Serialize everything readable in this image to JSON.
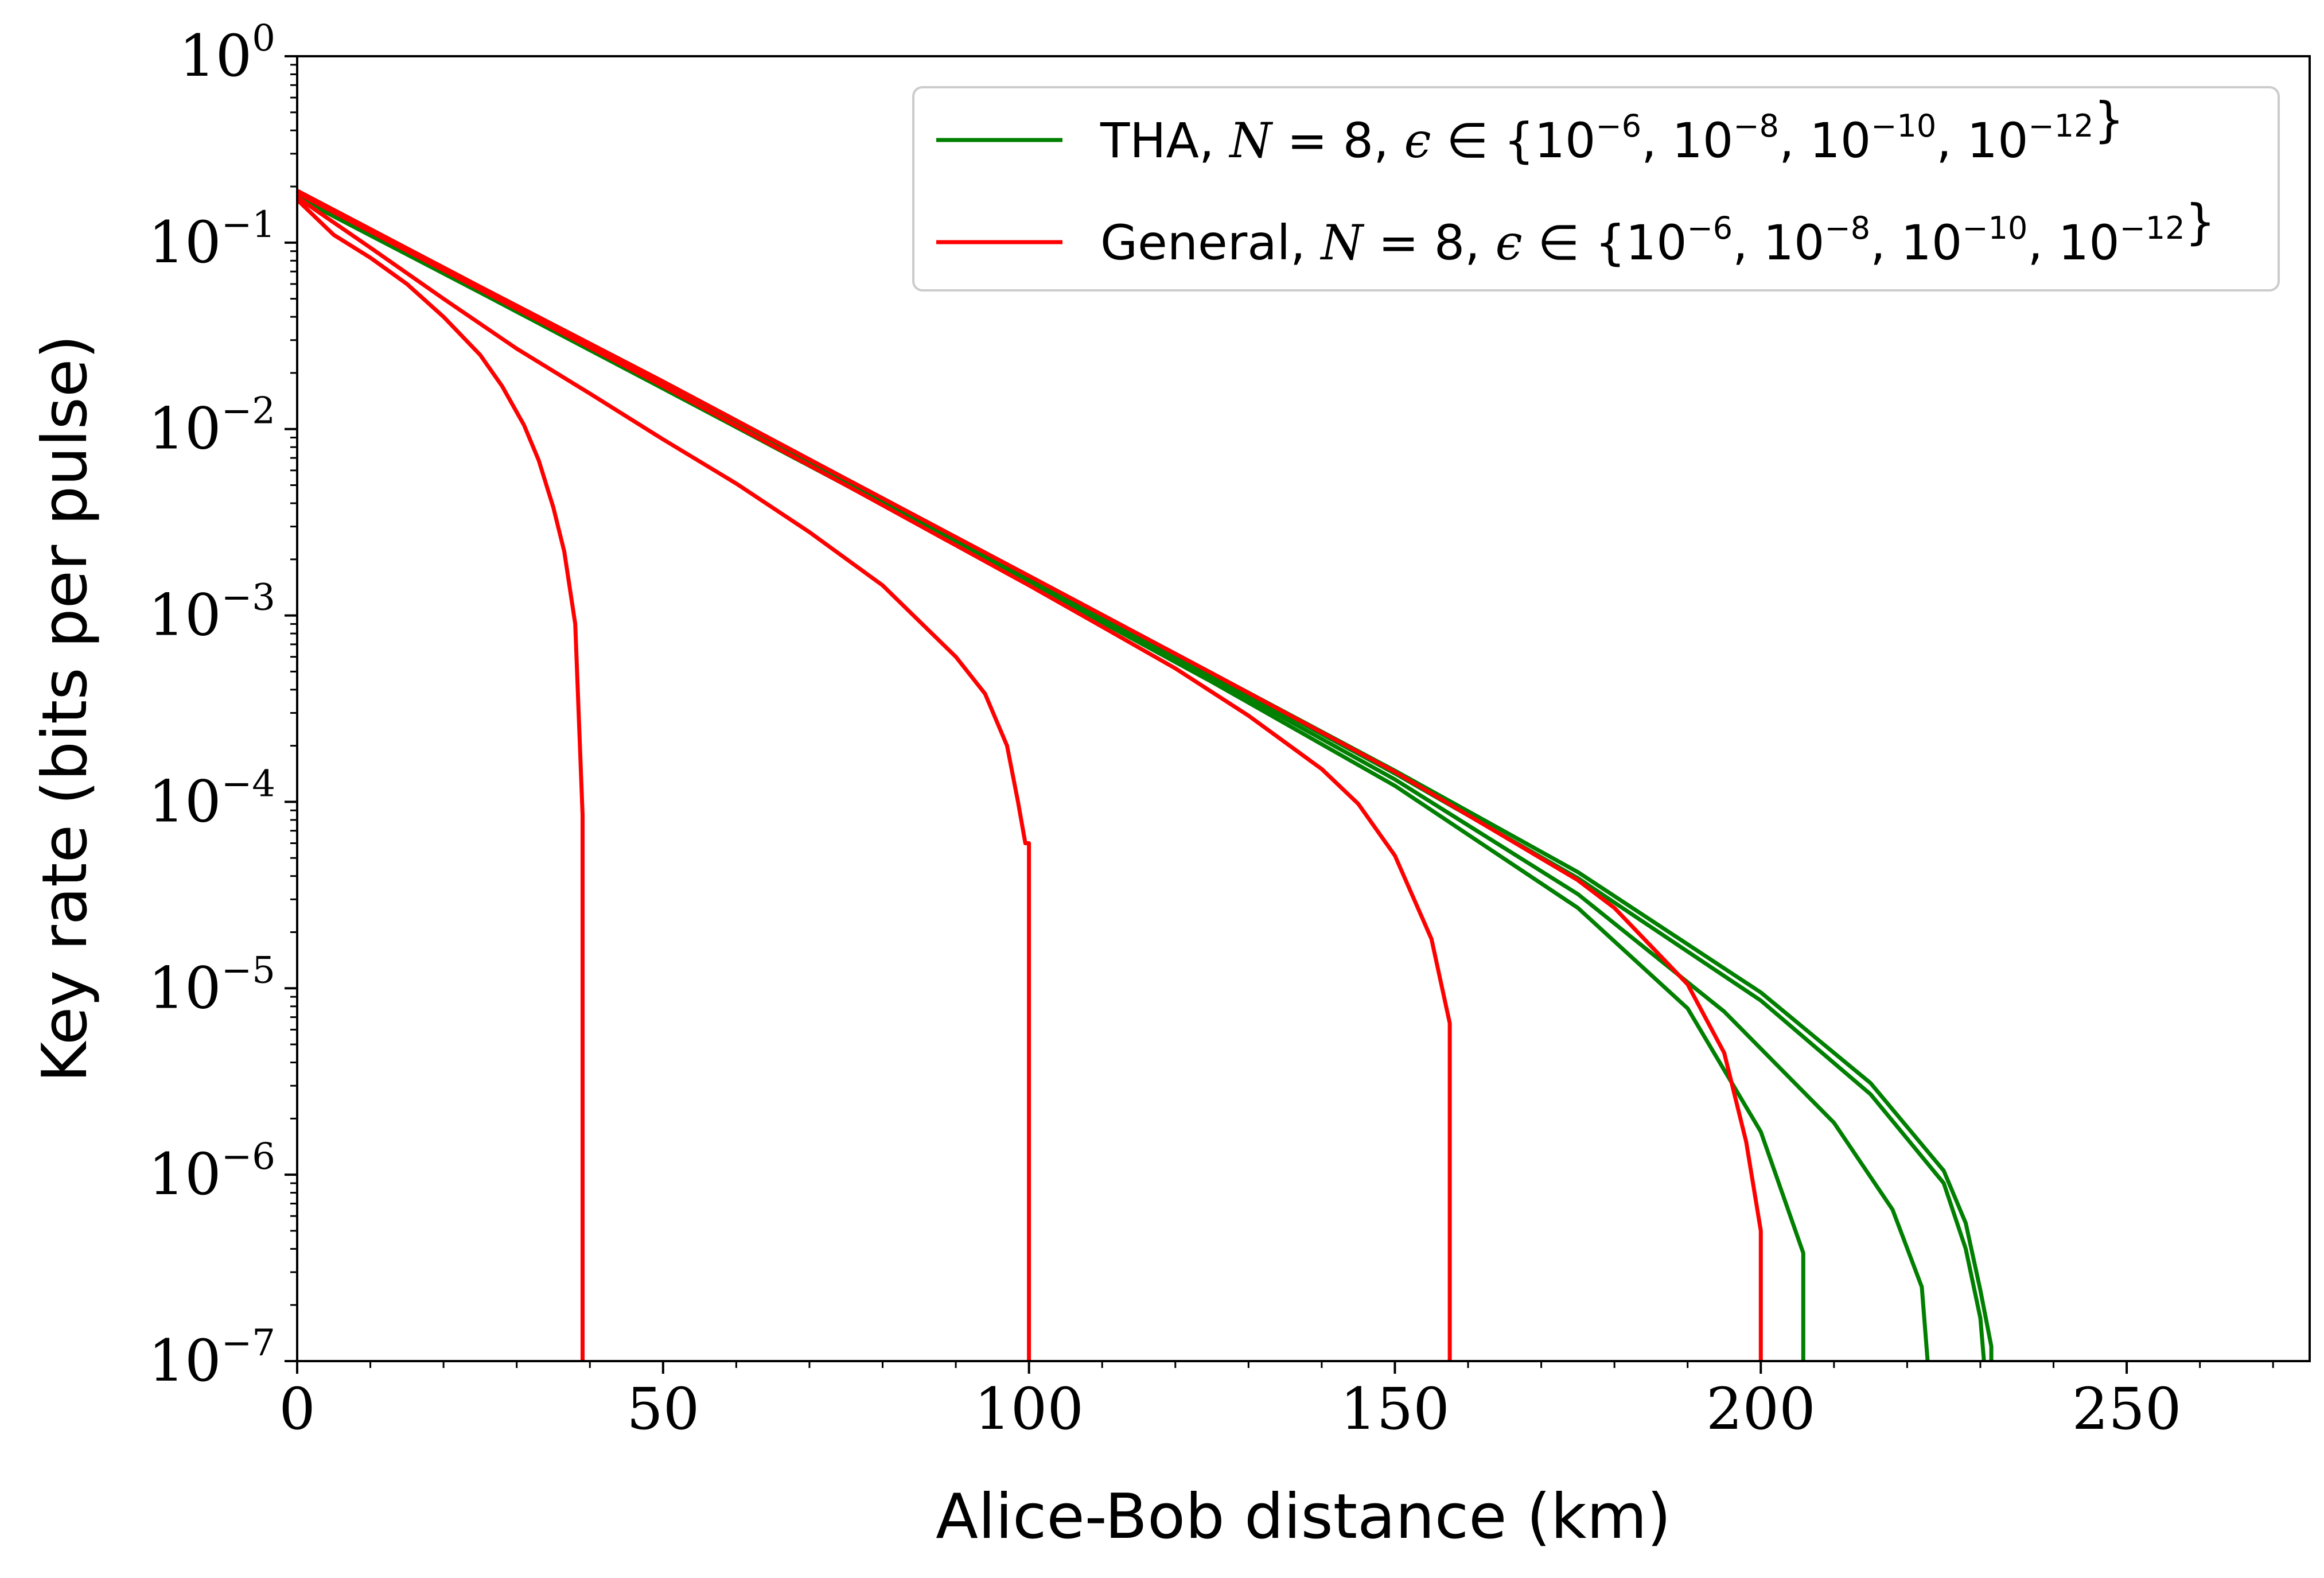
{
  "chart_data": {
    "type": "line",
    "title": "",
    "xlabel": "Alice-Bob distance (km)",
    "ylabel": "Key rate (bits per pulse)",
    "xlim": [
      0,
      275
    ],
    "ylim": [
      1e-07,
      1
    ],
    "yscale": "log",
    "grid": false,
    "legend_position": "top-right",
    "x_ticks": [
      0,
      50,
      100,
      150,
      200,
      250
    ],
    "x_tick_labels": [
      "0",
      "50",
      "100",
      "150",
      "200",
      "250"
    ],
    "y_ticks": [
      {
        "value": 1,
        "base": "10",
        "exponent": "0"
      },
      {
        "value": 0.1,
        "base": "10",
        "exponent": "−1"
      },
      {
        "value": 0.01,
        "base": "10",
        "exponent": "−2"
      },
      {
        "value": 0.001,
        "base": "10",
        "exponent": "−3"
      },
      {
        "value": 0.0001,
        "base": "10",
        "exponent": "−4"
      },
      {
        "value": 1e-05,
        "base": "10",
        "exponent": "−5"
      },
      {
        "value": 1e-06,
        "base": "10",
        "exponent": "−6"
      },
      {
        "value": 1e-07,
        "base": "10",
        "exponent": "−7"
      }
    ],
    "legend": [
      {
        "label": "THA, N = 8, ϵ ∈ {10^−6, 10^−8, 10^−10, 10^−12}",
        "name": "THA",
        "sep": ", ",
        "n_var": "N",
        "n_eq": " = 8, ",
        "eps": "ϵ",
        "in_set": " ∈ {",
        "close": "}",
        "exponents": [
          "−6",
          "−8",
          "−10",
          "−12"
        ],
        "color": "#007f00"
      },
      {
        "label": "General, N = 8, ϵ ∈ {10^−6, 10^−8, 10^−10, 10^−12}",
        "name": "General",
        "sep": ", ",
        "n_var": "N",
        "n_eq": " = 8, ",
        "eps": "ϵ",
        "in_set": " ∈ {",
        "close": "}",
        "exponents": [
          "−6",
          "−8",
          "−10",
          "−12"
        ],
        "color": "#ff0000"
      }
    ],
    "series": [
      {
        "name": "THA ϵ=1e-6",
        "group": "THA",
        "color": "#007f00",
        "x": [
          0,
          25,
          50,
          75,
          100,
          125,
          150,
          175,
          200,
          215,
          225,
          228,
          230,
          231.5,
          231.5
        ],
        "y": [
          0.19,
          0.058,
          0.018,
          0.0054,
          0.00163,
          0.00049,
          0.000147,
          4.2e-05,
          9.5e-06,
          3.1e-06,
          1.05e-06,
          5.5e-07,
          2.4e-07,
          1.2e-07,
          1e-07
        ]
      },
      {
        "name": "THA ϵ=1e-8",
        "group": "THA",
        "color": "#007f00",
        "x": [
          0,
          25,
          50,
          75,
          100,
          125,
          150,
          175,
          200,
          215,
          225,
          228,
          230,
          230.5
        ],
        "y": [
          0.185,
          0.057,
          0.0176,
          0.0053,
          0.0016,
          0.00048,
          0.000142,
          3.9e-05,
          8.6e-06,
          2.7e-06,
          9e-07,
          4e-07,
          1.7e-07,
          1e-07
        ]
      },
      {
        "name": "THA ϵ=1e-10",
        "group": "THA",
        "color": "#007f00",
        "x": [
          0,
          25,
          50,
          75,
          100,
          125,
          150,
          175,
          195,
          210,
          218,
          222,
          222.8
        ],
        "y": [
          0.18,
          0.055,
          0.017,
          0.0052,
          0.00155,
          0.00046,
          0.000132,
          3.2e-05,
          7.5e-06,
          1.9e-06,
          6.5e-07,
          2.5e-07,
          1e-07
        ]
      },
      {
        "name": "THA ϵ=1e-12",
        "group": "THA",
        "color": "#007f00",
        "x": [
          0,
          25,
          50,
          75,
          100,
          125,
          150,
          175,
          190,
          200,
          205.8,
          205.8
        ],
        "y": [
          0.175,
          0.054,
          0.0165,
          0.005,
          0.0015,
          0.00044,
          0.000122,
          2.7e-05,
          7.8e-06,
          1.7e-06,
          3.8e-07,
          1e-07
        ]
      },
      {
        "name": "General ϵ=1e-6",
        "group": "General",
        "color": "#ff0000",
        "x": [
          0,
          25,
          50,
          75,
          100,
          125,
          150,
          175,
          180,
          190,
          195,
          198,
          200,
          200
        ],
        "y": [
          0.19,
          0.058,
          0.018,
          0.0054,
          0.00163,
          0.00049,
          0.000145,
          3.8e-05,
          2.7e-05,
          1.05e-05,
          4.5e-06,
          1.5e-06,
          5e-07,
          1e-07
        ]
      },
      {
        "name": "General ϵ=1e-8",
        "group": "General",
        "color": "#ff0000",
        "x": [
          0,
          25,
          50,
          75,
          100,
          110,
          120,
          130,
          140,
          145,
          150,
          155,
          157.5,
          157.5
        ],
        "y": [
          0.185,
          0.056,
          0.017,
          0.005,
          0.00145,
          0.00087,
          0.00052,
          0.00029,
          0.00015,
          9.75e-05,
          5.15e-05,
          1.84e-05,
          6.5e-06,
          1e-07
        ]
      },
      {
        "name": "General ϵ=1e-10",
        "group": "General",
        "color": "#ff0000",
        "x": [
          0,
          10,
          20,
          30,
          40,
          50,
          60,
          70,
          80,
          90,
          94,
          97,
          98.5,
          99.5,
          100,
          100
        ],
        "y": [
          0.175,
          0.094,
          0.05,
          0.027,
          0.0155,
          0.0088,
          0.0051,
          0.0028,
          0.00145,
          0.0006,
          0.00038,
          0.0002,
          0.0001,
          6e-05,
          6e-05,
          1e-07
        ]
      },
      {
        "name": "General ϵ=1e-12",
        "group": "General",
        "color": "#ff0000",
        "x": [
          0,
          5,
          10,
          15,
          20,
          25,
          28,
          31,
          33,
          35,
          36.5,
          38,
          39,
          39,
          39
        ],
        "y": [
          0.17,
          0.11,
          0.083,
          0.06,
          0.04,
          0.025,
          0.017,
          0.0105,
          0.0068,
          0.0038,
          0.0022,
          0.0009,
          8.5e-05,
          8.5e-05,
          1e-07
        ]
      }
    ]
  }
}
